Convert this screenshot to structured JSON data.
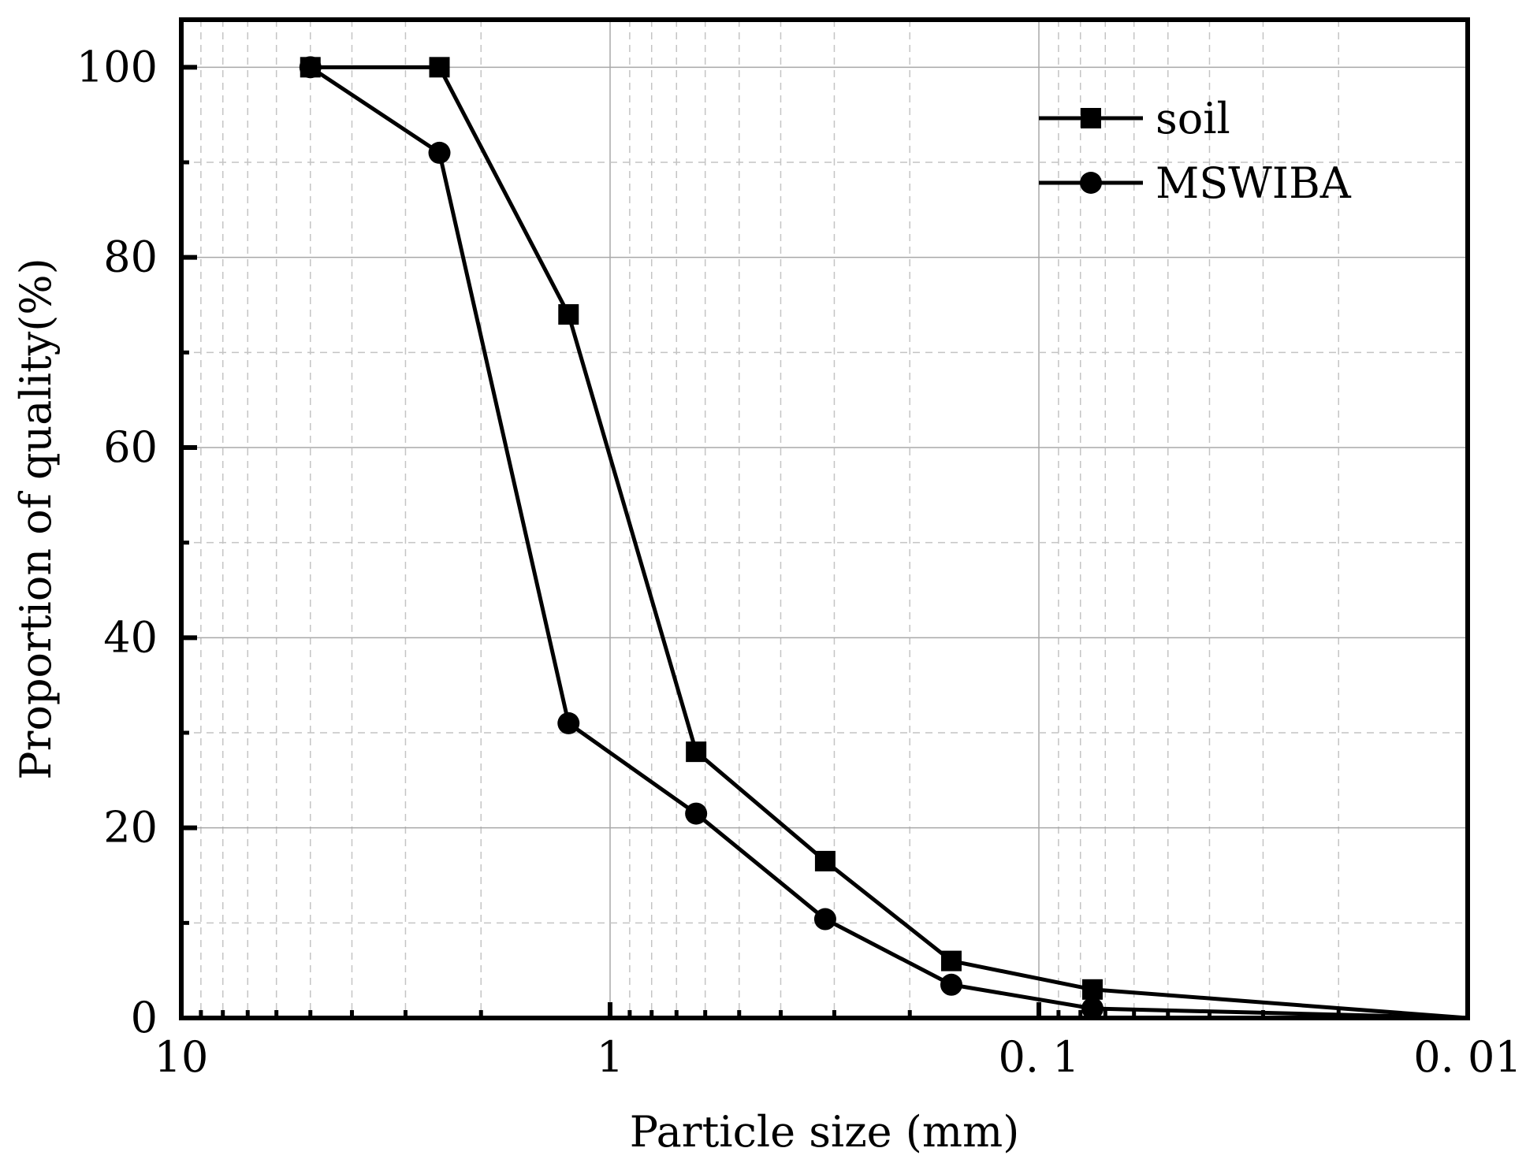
{
  "chart_data": {
    "type": "line",
    "title": "",
    "xlabel": "Particle size (mm)",
    "ylabel": "Proportion of quality(%)",
    "x_scale": "log",
    "x_reversed": true,
    "xlim": [
      10,
      0.01
    ],
    "ylim": [
      0,
      105
    ],
    "x_ticks": [
      {
        "value": 10,
        "label": "10"
      },
      {
        "value": 1,
        "label": "1"
      },
      {
        "value": 0.1,
        "label": "0. 1"
      },
      {
        "value": 0.01,
        "label": "0. 01"
      }
    ],
    "y_ticks": [
      0,
      20,
      40,
      60,
      80,
      100
    ],
    "grid": true,
    "legend_position": "top-right",
    "series": [
      {
        "name": "soil",
        "marker": "square",
        "x": [
          5,
          2.5,
          1.25,
          0.63,
          0.315,
          0.16,
          0.075,
          0.01
        ],
        "values": [
          100,
          100,
          74,
          28,
          16.5,
          6,
          3,
          0
        ]
      },
      {
        "name": "MSWIBA",
        "marker": "circle",
        "x": [
          5,
          2.5,
          1.25,
          0.63,
          0.315,
          0.16,
          0.075,
          0.01
        ],
        "values": [
          100,
          91,
          31,
          21.5,
          10.4,
          3.5,
          1,
          0
        ]
      }
    ]
  }
}
